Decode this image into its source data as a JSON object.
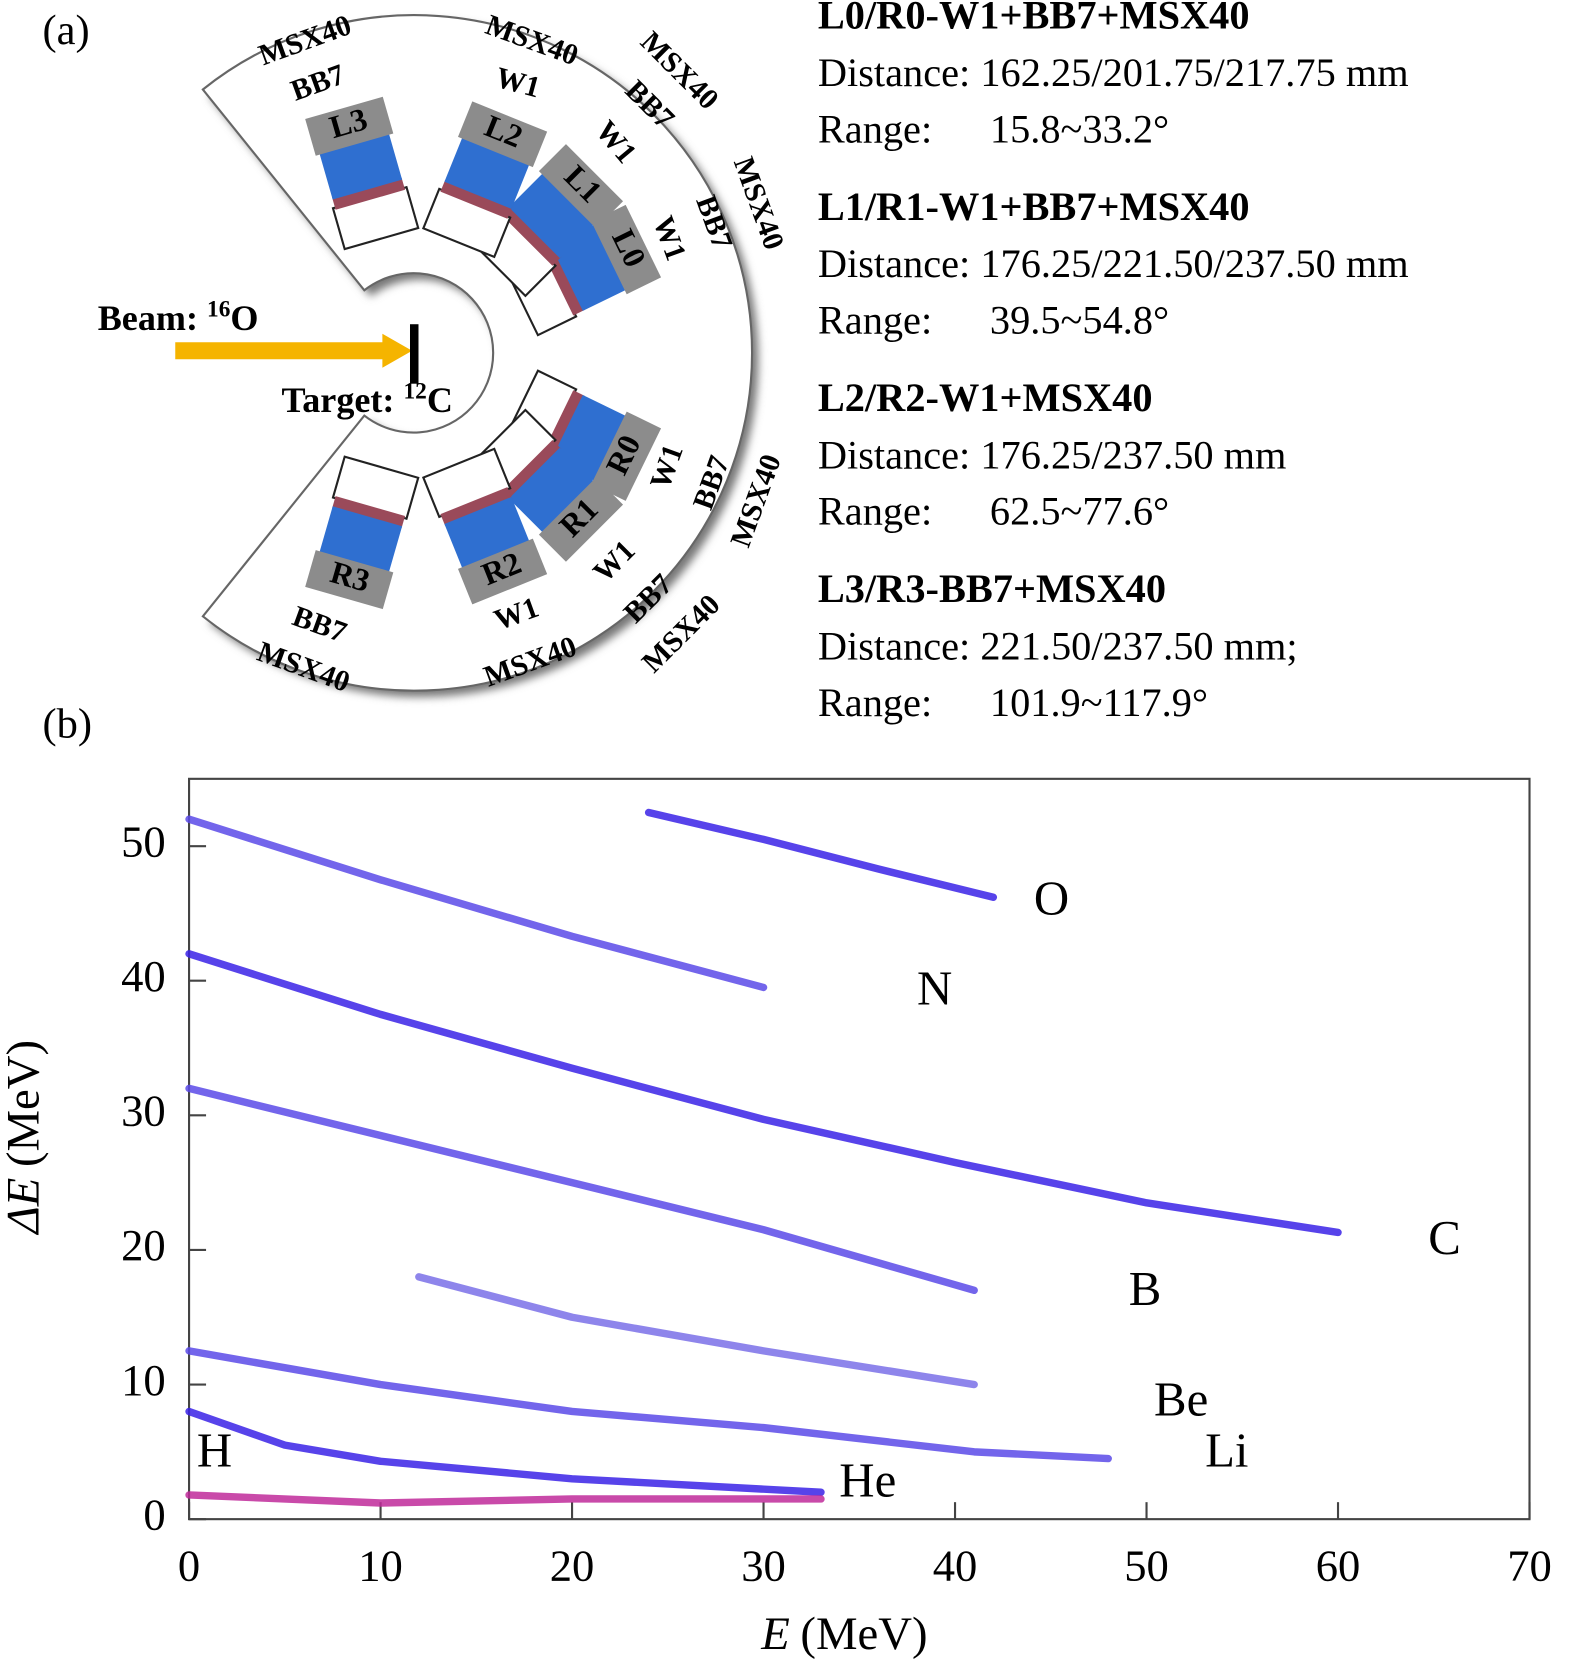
{
  "figure_a": {
    "label": "(a)",
    "beam": {
      "prefix": "Beam: ",
      "mass": "16",
      "element": "O"
    },
    "target": {
      "prefix": "Target: ",
      "mass": "12",
      "element": "C"
    },
    "detectors": [
      "L0",
      "L1",
      "L2",
      "L3",
      "R0",
      "R1",
      "R2",
      "R3"
    ],
    "ring_labels": [
      "BB7",
      "MSX40",
      "W1",
      "MSX40",
      "W1",
      "BB7",
      "MSX40",
      "W1",
      "BB7",
      "MSX40",
      "W1",
      "BB7",
      "MSX40",
      "W1",
      "BB7",
      "MSX40",
      "W1",
      "MSX40",
      "BB7",
      "MSX40"
    ],
    "telescopes": [
      {
        "title": "L0/R0-W1+BB7+MSX40",
        "distance": "Distance: 162.25/201.75/217.75 mm",
        "range_label": "Range:",
        "range": "15.8~33.2°"
      },
      {
        "title": "L1/R1-W1+BB7+MSX40",
        "distance": "Distance: 176.25/221.50/237.50 mm",
        "range_label": "Range:",
        "range": "39.5~54.8°"
      },
      {
        "title": "L2/R2-W1+MSX40",
        "distance": "Distance: 176.25/237.50 mm",
        "range_label": "Range:",
        "range": "62.5~77.6°"
      },
      {
        "title": "L3/R3-BB7+MSX40",
        "distance": "Distance: 221.50/237.50 mm;",
        "range_label": "Range:",
        "range": "101.9~117.9°"
      }
    ]
  },
  "figure_b_label": "(b)",
  "chart_data": {
    "type": "line",
    "xlabel": {
      "symbol": "E",
      "unit": "(MeV)"
    },
    "ylabel": {
      "symbol": "ΔE",
      "unit": "(MeV)"
    },
    "xlim": [
      0,
      70
    ],
    "xticks": [
      0,
      10,
      20,
      30,
      40,
      50,
      60,
      70
    ],
    "ylim": [
      0,
      55
    ],
    "yticks": [
      0,
      10,
      20,
      30,
      40,
      50
    ],
    "series": [
      {
        "name": "O",
        "color": "#3a22e6",
        "x": [
          24,
          30,
          36,
          42
        ],
        "values": [
          52.5,
          50.5,
          48.3,
          46.2
        ]
      },
      {
        "name": "N",
        "color": "#5a4ae8",
        "x": [
          0,
          10,
          20,
          30
        ],
        "values": [
          52,
          47.5,
          43.3,
          39.5
        ]
      },
      {
        "name": "C",
        "color": "#3a22e6",
        "x": [
          0,
          10,
          20,
          30,
          40,
          50,
          60
        ],
        "values": [
          42,
          37.5,
          33.5,
          29.7,
          26.5,
          23.5,
          21.3
        ]
      },
      {
        "name": "B",
        "color": "#5a4ae8",
        "x": [
          0,
          10,
          20,
          30,
          41
        ],
        "values": [
          32,
          28.5,
          25,
          21.5,
          17
        ]
      },
      {
        "name": "Be",
        "color": "#7a70e8",
        "x": [
          12,
          20,
          30,
          41
        ],
        "values": [
          18,
          15,
          12.5,
          10
        ]
      },
      {
        "name": "Li",
        "color": "#5a4ae8",
        "x": [
          0,
          10,
          20,
          30,
          41,
          48
        ],
        "values": [
          12.5,
          10,
          8,
          6.8,
          5,
          4.5
        ]
      },
      {
        "name": "He",
        "color": "#3a22e6",
        "x": [
          0,
          5,
          10,
          20,
          33
        ],
        "values": [
          8,
          5.5,
          4.3,
          3,
          2
        ]
      },
      {
        "name": "H",
        "color": "#c02a9a",
        "x": [
          0,
          10,
          20,
          33
        ],
        "values": [
          1.8,
          1.2,
          1.5,
          1.5
        ]
      }
    ]
  }
}
